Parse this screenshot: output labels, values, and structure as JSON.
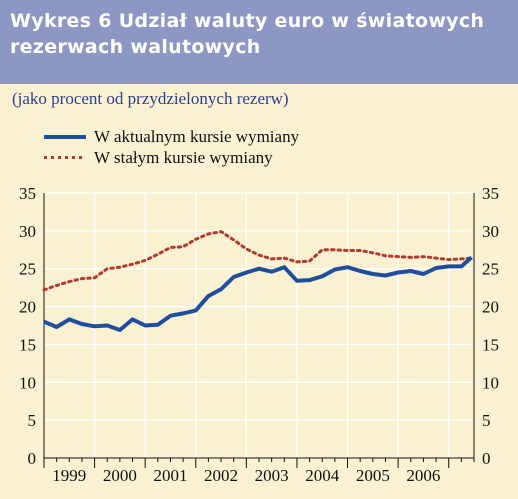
{
  "header": {
    "title_line1": "Wykres 6 Udział waluty euro w światowych",
    "title_line2": "rezerwach walutowych"
  },
  "subtitle": "(jako procent od przydzielonych rezerw)",
  "colors": {
    "title_background": "#8c97c4",
    "background": "#faf1d2",
    "series_current": "#1f4e9c",
    "series_constant": "#b13b2e",
    "subtitle_text": "#2b3f8f"
  },
  "chart_data": {
    "type": "line",
    "title": "Wykres 6 Udział waluty euro w światowych rezerwach walutowych",
    "subtitle": "(jako procent od przydzielonych rezerw)",
    "x_categories": [
      "1999",
      "2000",
      "2001",
      "2002",
      "2003",
      "2004",
      "2005",
      "2006"
    ],
    "y_ticks": [
      "0",
      "5",
      "10",
      "15",
      "20",
      "25",
      "30",
      "35"
    ],
    "ylim": [
      0,
      35
    ],
    "grid": true,
    "legend_position": "top-left",
    "series": [
      {
        "name": "W aktualnym kursie wymiany",
        "style": "solid",
        "color": "#1f4e9c",
        "x": [
          1999.0,
          1999.25,
          1999.5,
          1999.75,
          2000.0,
          2000.25,
          2000.5,
          2000.75,
          2001.0,
          2001.25,
          2001.5,
          2001.75,
          2002.0,
          2002.25,
          2002.5,
          2002.75,
          2003.0,
          2003.25,
          2003.5,
          2003.75,
          2004.0,
          2004.25,
          2004.5,
          2004.75,
          2005.0,
          2005.25,
          2005.5,
          2005.75,
          2006.0,
          2006.25,
          2006.5,
          2006.75,
          2007.0,
          2007.25,
          2007.45
        ],
        "values": [
          18.0,
          17.3,
          18.3,
          17.7,
          17.4,
          17.5,
          16.9,
          18.3,
          17.5,
          17.6,
          18.8,
          19.1,
          19.5,
          21.4,
          22.3,
          23.9,
          24.5,
          25.0,
          24.6,
          25.2,
          23.4,
          23.5,
          24.0,
          24.9,
          25.2,
          24.7,
          24.3,
          24.1,
          24.5,
          24.7,
          24.3,
          25.1,
          25.3,
          25.3,
          26.5
        ]
      },
      {
        "name": "W stałym kursie wymiany",
        "style": "dotted",
        "color": "#b13b2e",
        "x": [
          1999.0,
          1999.25,
          1999.5,
          1999.75,
          2000.0,
          2000.25,
          2000.5,
          2000.75,
          2001.0,
          2001.25,
          2001.5,
          2001.75,
          2002.0,
          2002.25,
          2002.5,
          2002.75,
          2003.0,
          2003.25,
          2003.5,
          2003.75,
          2004.0,
          2004.25,
          2004.5,
          2004.75,
          2005.0,
          2005.25,
          2005.5,
          2005.75,
          2006.0,
          2006.25,
          2006.5,
          2006.75,
          2007.0,
          2007.25,
          2007.45
        ],
        "values": [
          22.2,
          22.8,
          23.3,
          23.7,
          23.8,
          25.0,
          25.2,
          25.6,
          26.1,
          26.9,
          27.8,
          27.9,
          28.9,
          29.6,
          29.9,
          28.8,
          27.6,
          26.8,
          26.3,
          26.4,
          25.9,
          26.0,
          27.5,
          27.5,
          27.4,
          27.4,
          27.1,
          26.7,
          26.6,
          26.5,
          26.6,
          26.4,
          26.2,
          26.3,
          26.4
        ]
      }
    ]
  }
}
